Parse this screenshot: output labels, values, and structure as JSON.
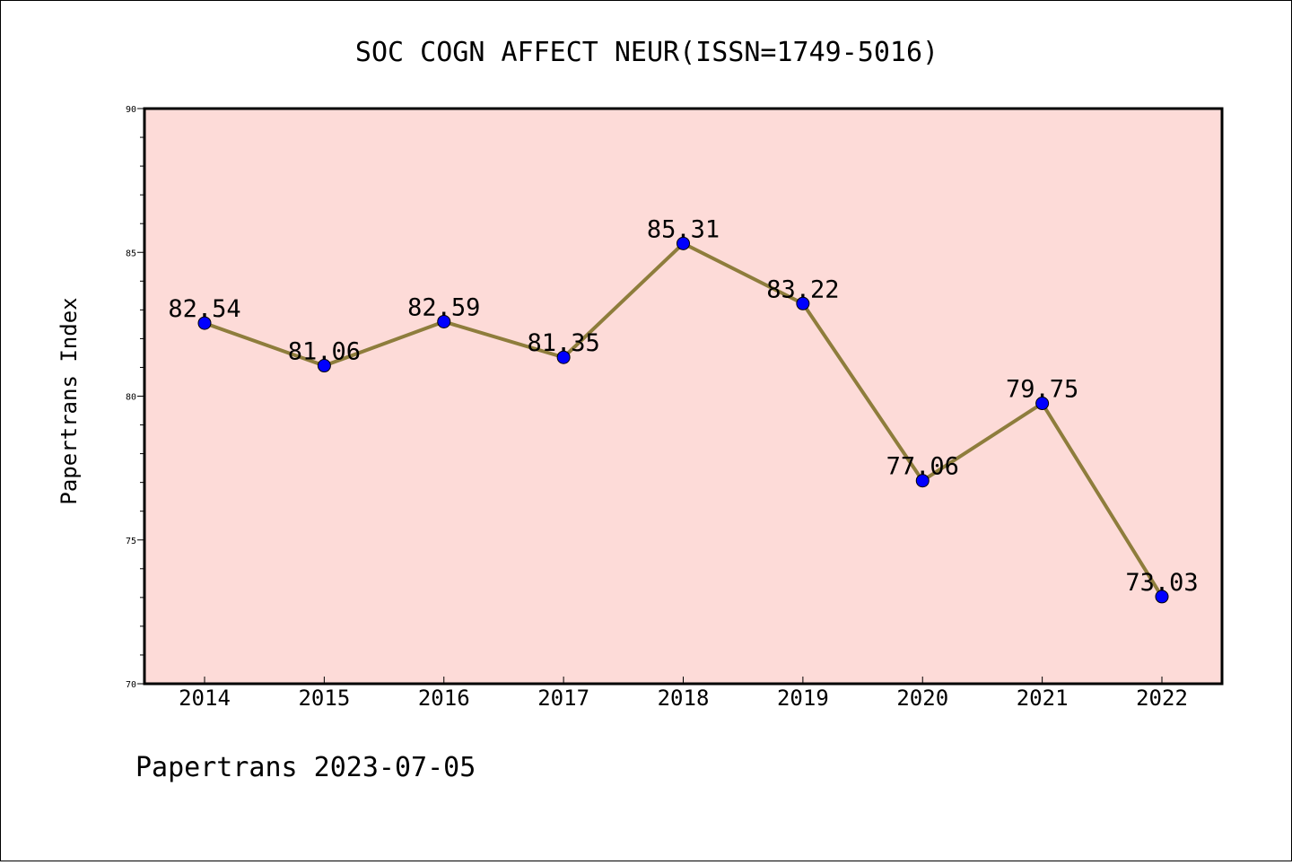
{
  "chart_data": {
    "type": "line",
    "title": "SOC COGN AFFECT NEUR(ISSN=1749-5016)",
    "xlabel": "",
    "ylabel": "Papertrans Index",
    "categories": [
      "2014",
      "2015",
      "2016",
      "2017",
      "2018",
      "2019",
      "2020",
      "2021",
      "2022"
    ],
    "series": [
      {
        "values": [
          82.54,
          81.06,
          82.59,
          81.35,
          85.31,
          83.22,
          77.06,
          79.75,
          73.03
        ]
      }
    ],
    "data_labels": [
      "82.54",
      "81.06",
      "82.59",
      "81.35",
      "85.31",
      "83.22",
      "77.06",
      "79.75",
      "73.03"
    ],
    "ylim": [
      70,
      90
    ],
    "yticks": [
      "70",
      "75",
      "80",
      "85",
      "90"
    ],
    "grid": false,
    "colors": {
      "plot_background": "#fddbd8",
      "line": "#8e7d3c",
      "marker": "#0000ff"
    }
  },
  "footer": "Papertrans 2023-07-05"
}
